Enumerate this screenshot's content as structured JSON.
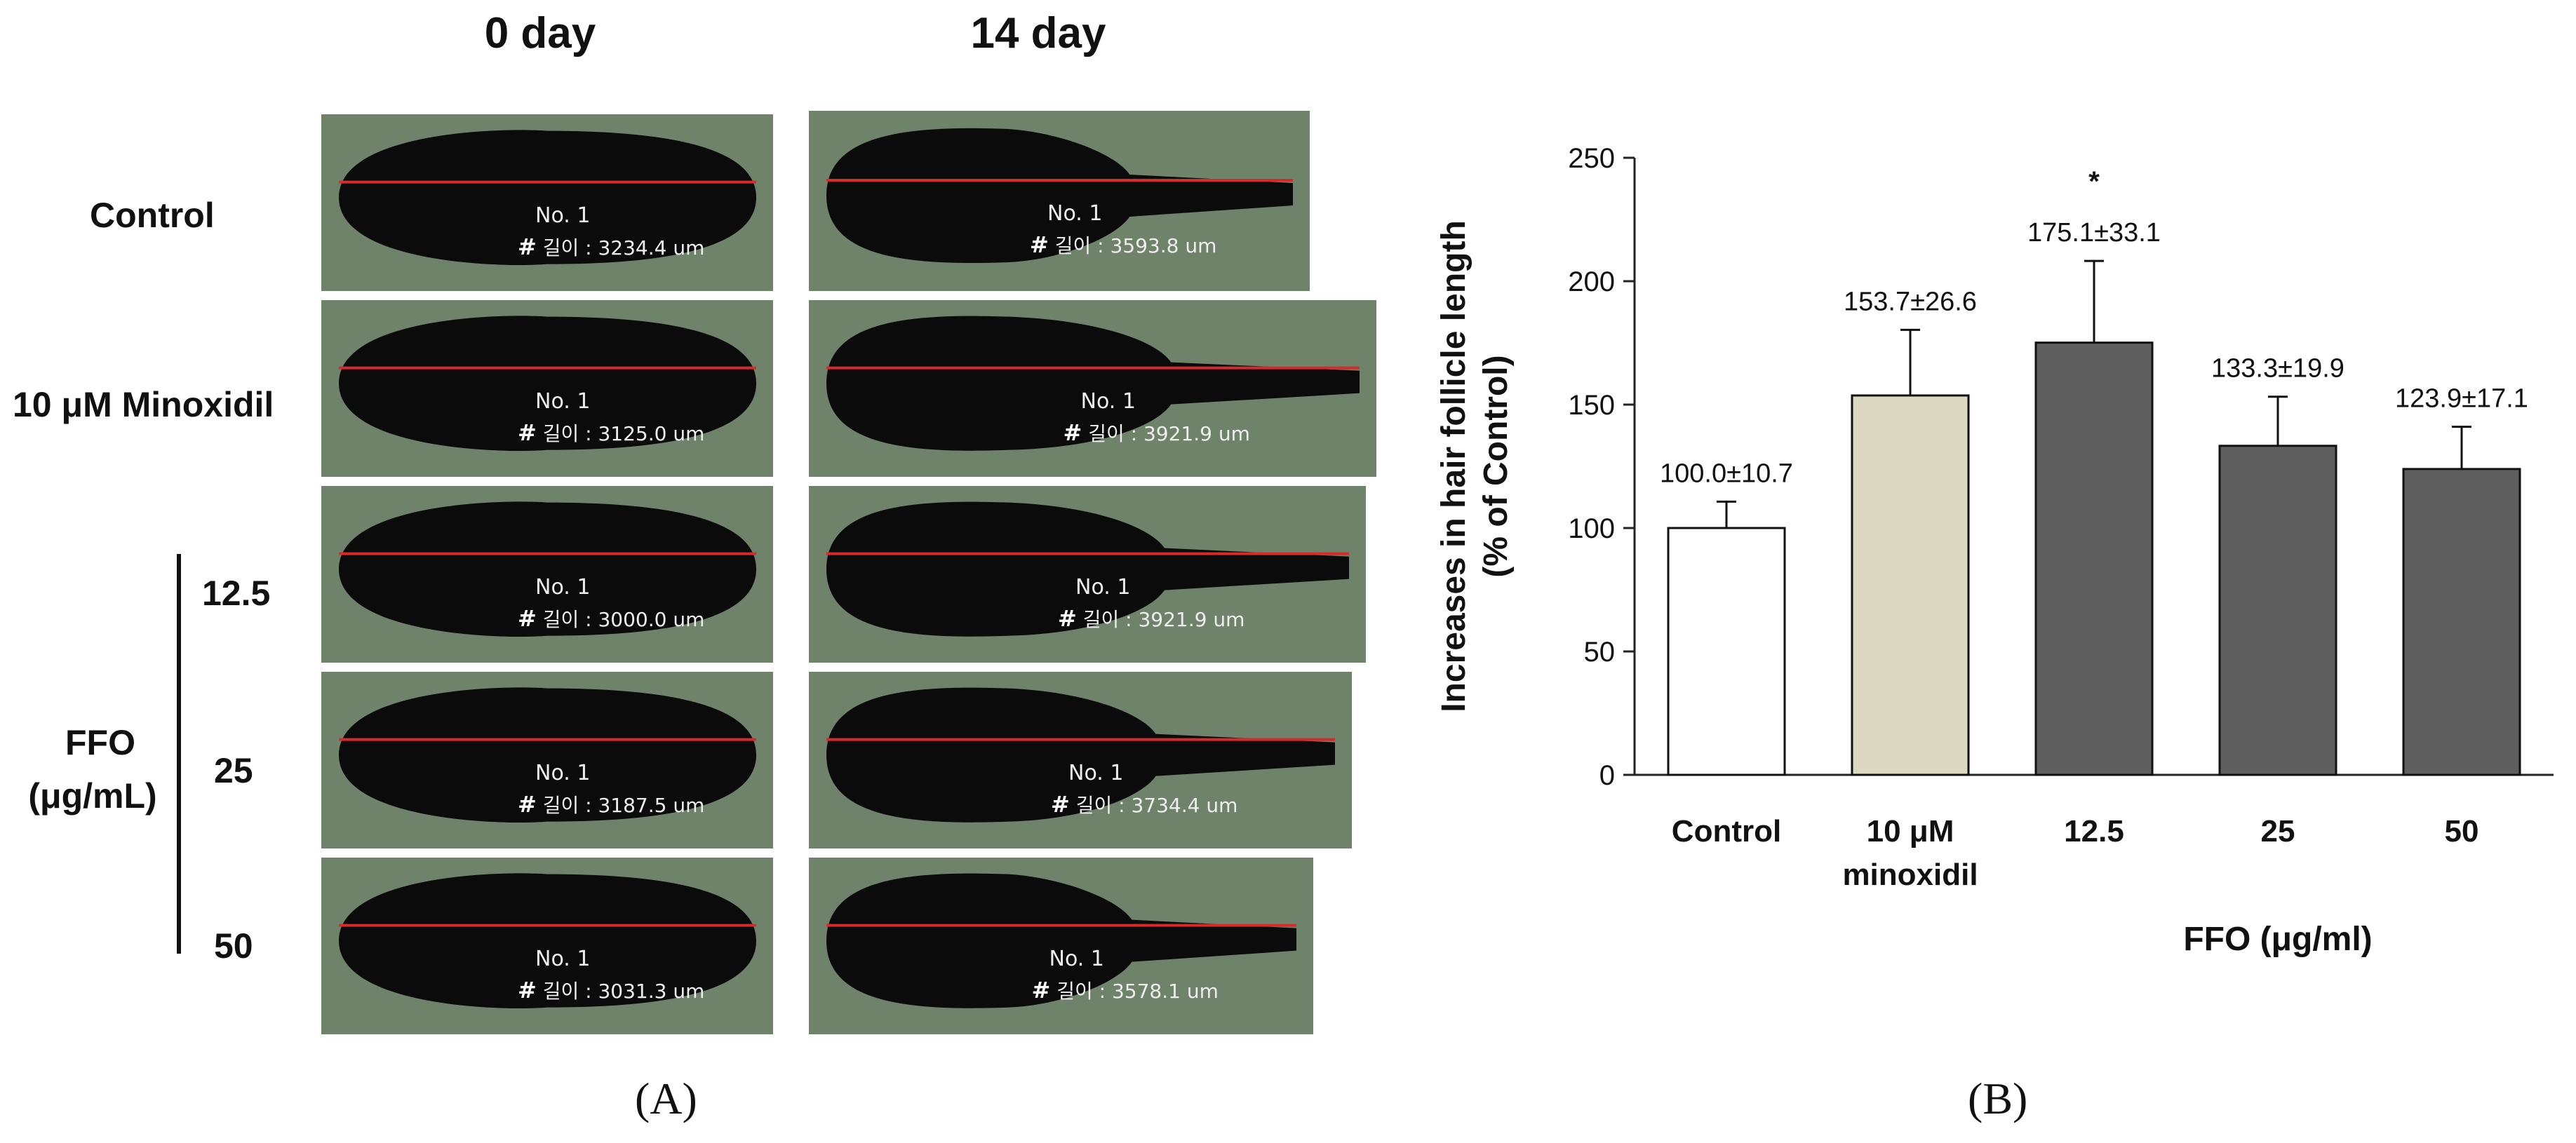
{
  "panel_a": {
    "label": "(A)",
    "columns": [
      "0 day",
      "14 day"
    ],
    "rows": [
      {
        "label": "Control",
        "day0": {
          "no": "No. 1",
          "length_label": "길이 : 3234.4 um"
        },
        "day14": {
          "no": "No. 1",
          "length_label": "길이 : 3593.8 um"
        }
      },
      {
        "label": "10 μM Minoxidil",
        "day0": {
          "no": "No. 1",
          "length_label": "길이 : 3125.0 um"
        },
        "day14": {
          "no": "No. 1",
          "length_label": "길이 : 3921.9 um"
        }
      },
      {
        "label": "12.5",
        "day0": {
          "no": "No. 1",
          "length_label": "길이 : 3000.0 um"
        },
        "day14": {
          "no": "No. 1",
          "length_label": "길이 : 3921.9 um"
        }
      },
      {
        "label": "25",
        "day0": {
          "no": "No. 1",
          "length_label": "길이 : 3187.5 um"
        },
        "day14": {
          "no": "No. 1",
          "length_label": "길이 : 3734.4 um"
        }
      },
      {
        "label": "50",
        "day0": {
          "no": "No. 1",
          "length_label": "길이 : 3031.3 um"
        },
        "day14": {
          "no": "No. 1",
          "length_label": "길이 : 3578.1 um"
        }
      }
    ],
    "hash_mark": "#",
    "group_label_line1": "FFO",
    "group_label_line2": "(μg/mL)",
    "colors": {
      "background": "#6f826a",
      "follicle": "#0b0b0b",
      "measure_line": "#d62b2b"
    }
  },
  "panel_b": {
    "label": "(B)"
  },
  "chart_data": {
    "type": "bar",
    "categories": [
      "Control",
      "10 μM minoxidil",
      "12.5",
      "25",
      "50"
    ],
    "category_labels": [
      [
        "Control"
      ],
      [
        "10 μM",
        "minoxidil"
      ],
      [
        "12.5"
      ],
      [
        "25"
      ],
      [
        "50"
      ]
    ],
    "values": [
      100.0,
      153.7,
      175.1,
      133.3,
      123.9
    ],
    "errors": [
      10.7,
      26.6,
      33.1,
      19.9,
      17.1
    ],
    "value_labels": [
      "100.0±10.7",
      "153.7±26.6",
      "175.1±33.1",
      "133.3±19.9",
      "123.9±17.1"
    ],
    "significance": [
      "",
      "",
      "*",
      "",
      ""
    ],
    "bar_colors": [
      "#ffffff",
      "#ddd8c2",
      "#5f5f5f",
      "#5f5f5f",
      "#5f5f5f"
    ],
    "ylabel_line1": "Increases in hair follicle length",
    "ylabel_line2": "(% of Control)",
    "xlabel": "FFO (μg/ml)",
    "ylim": [
      0,
      250
    ],
    "yticks": [
      0,
      50,
      100,
      150,
      200,
      250
    ],
    "grid": false
  }
}
